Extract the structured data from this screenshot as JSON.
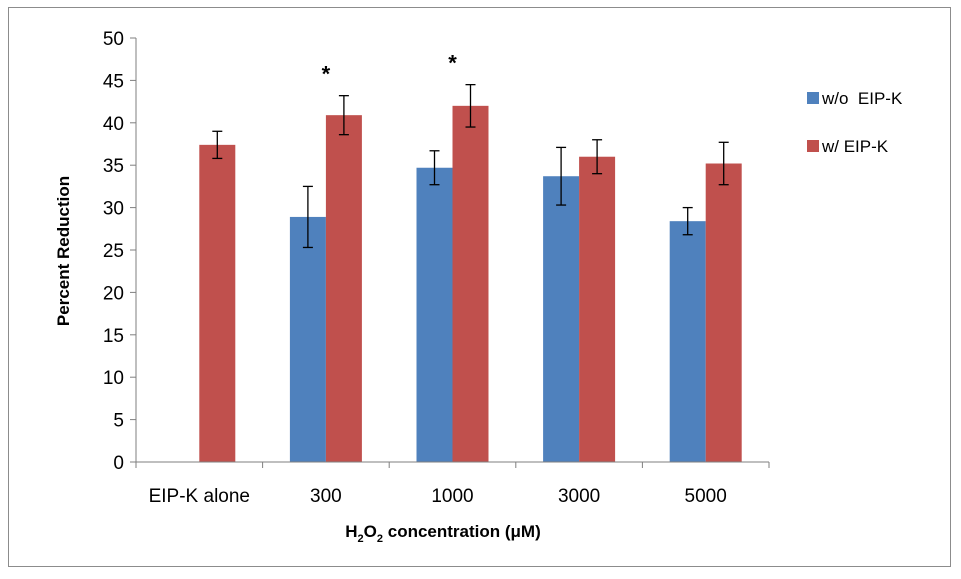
{
  "chart_data": {
    "type": "bar",
    "categories": [
      "EIP-K alone",
      "300",
      "1000",
      "3000",
      "5000"
    ],
    "series": [
      {
        "name": "w/o  EIP-K",
        "color": "#4f81bd",
        "values": [
          null,
          28.9,
          34.7,
          33.7,
          28.4
        ],
        "errors": [
          null,
          3.6,
          2.0,
          3.4,
          1.6
        ]
      },
      {
        "name": "w/ EIP-K",
        "color": "#c0504d",
        "values": [
          37.4,
          40.9,
          42.0,
          36.0,
          35.2
        ],
        "errors": [
          1.6,
          2.3,
          2.5,
          2.0,
          2.5
        ]
      }
    ],
    "annotations": [
      "",
      "*",
      "*",
      "",
      ""
    ],
    "ylabel": "Percent Reduction",
    "xlabel": {
      "prefix": "H",
      "sub1": "2",
      "mid": "O",
      "sub2": "2",
      "suffix": " concentration (μM)"
    },
    "ylim": [
      0,
      50
    ],
    "ytick_step": 5,
    "grid": false,
    "legend_position": "right"
  }
}
